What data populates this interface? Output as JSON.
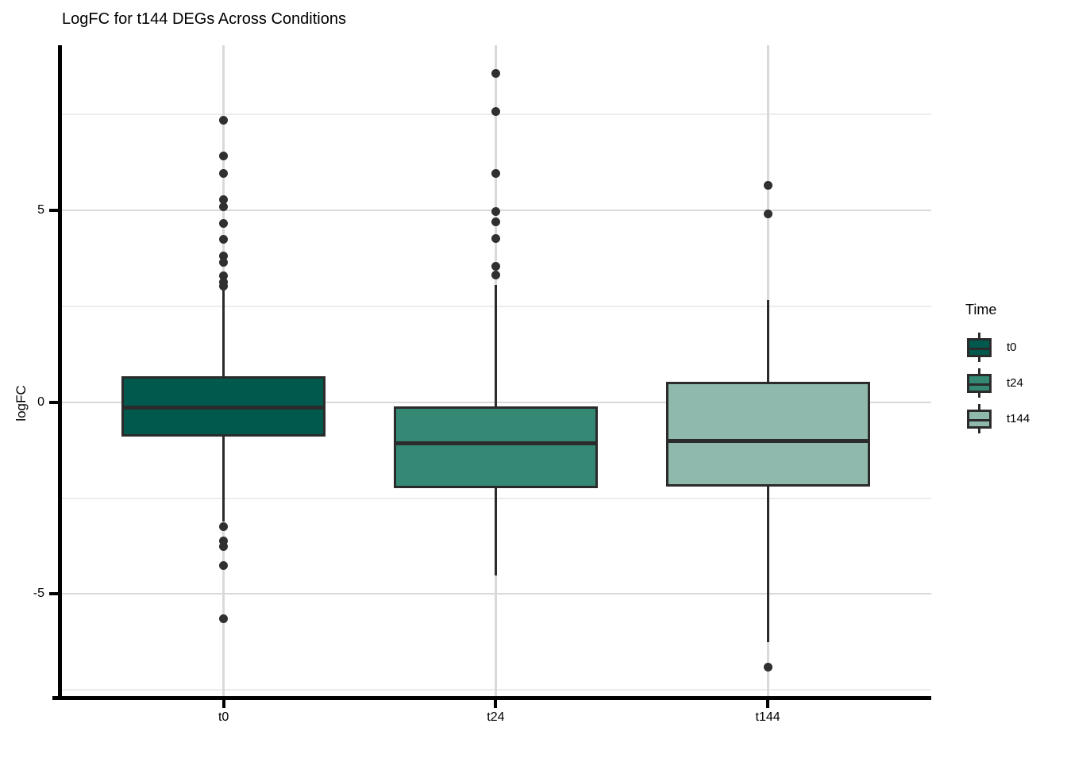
{
  "chart_data": {
    "type": "boxplot",
    "title": "LogFC for t144 DEGs Across Conditions",
    "xlabel": "",
    "ylabel": "logFC",
    "categories": [
      "t0",
      "t24",
      "t144"
    ],
    "y_axis": {
      "major_ticks": [
        5,
        0,
        -5
      ],
      "major_tick_labels": [
        "5",
        "0",
        "-5"
      ],
      "minor_ticks": [
        7.5,
        2.5,
        -2.5,
        -7.5
      ],
      "ylim": [
        -7.7,
        9.3
      ],
      "grid": "horizontal-major-minor, vertical-at-categories"
    },
    "legend": {
      "title": "Time",
      "position": "right",
      "entries": [
        {
          "label": "t0",
          "color": "#01594E"
        },
        {
          "label": "t24",
          "color": "#348874"
        },
        {
          "label": "t144",
          "color": "#8FB9AD"
        }
      ]
    },
    "series": [
      {
        "name": "t0",
        "fill": "#01594E",
        "q1": -0.9,
        "median": -0.15,
        "q3": 0.67,
        "whisker_low": -3.1,
        "whisker_high": 2.94,
        "outliers_high": [
          7.35,
          6.42,
          5.97,
          5.27,
          5.1,
          4.65,
          4.24,
          3.8,
          3.64,
          3.29,
          3.12,
          3.02
        ],
        "outliers_low": [
          -3.25,
          -3.62,
          -3.76,
          -4.26,
          -5.64
        ]
      },
      {
        "name": "t24",
        "fill": "#348874",
        "q1": -2.24,
        "median": -1.08,
        "q3": -0.11,
        "whisker_low": -4.51,
        "whisker_high": 3.06,
        "outliers_high": [
          8.56,
          7.58,
          5.95,
          4.97,
          4.69,
          4.26,
          3.54,
          3.31
        ],
        "outliers_low": []
      },
      {
        "name": "t144",
        "fill": "#8FB9AD",
        "q1": -2.2,
        "median": -1.01,
        "q3": 0.53,
        "whisker_low": -6.25,
        "whisker_high": 2.66,
        "outliers_high": [
          5.64,
          4.9
        ],
        "outliers_low": [
          -6.9
        ]
      }
    ]
  }
}
